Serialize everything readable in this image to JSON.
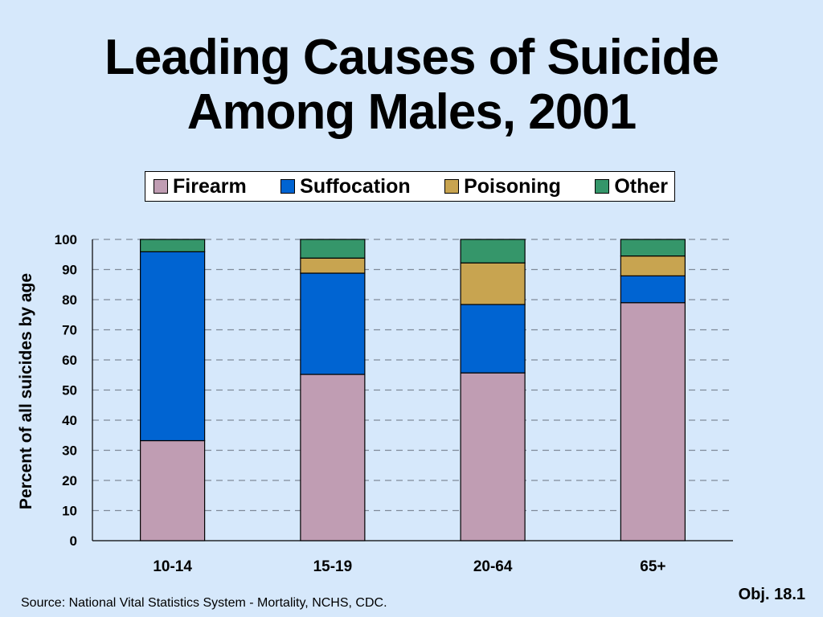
{
  "slide": {
    "title_line1": "Leading Causes of Suicide",
    "title_line2": "Among Males, 2001",
    "source": "Source: National Vital Statistics System - Mortality, NCHS, CDC.",
    "objective": "Obj. 18.1"
  },
  "colors": {
    "background": "#d6e8fb",
    "Firearm": "#c09db3",
    "Suffocation": "#0064d2",
    "Poisoning": "#c8a450",
    "Other": "#35966a"
  },
  "chart_data": {
    "type": "bar",
    "stacked": true,
    "title": "Leading Causes of Suicide Among Males, 2001",
    "xlabel": "",
    "ylabel": "Percent of all suicides by age",
    "ylim": [
      0,
      100
    ],
    "yticks": [
      0,
      10,
      20,
      30,
      40,
      50,
      60,
      70,
      80,
      90,
      100
    ],
    "categories": [
      "10-14",
      "15-19",
      "20-64",
      "65+"
    ],
    "legend_position": "top",
    "grid": "horizontal dashed",
    "series": [
      {
        "name": "Firearm",
        "values": [
          33.2,
          55.2,
          55.7,
          79.0
        ]
      },
      {
        "name": "Suffocation",
        "values": [
          62.7,
          33.6,
          22.7,
          8.9
        ]
      },
      {
        "name": "Poisoning",
        "values": [
          0,
          5.0,
          13.8,
          6.6
        ]
      },
      {
        "name": "Other",
        "values": [
          4.1,
          6.2,
          7.8,
          5.5
        ]
      }
    ]
  }
}
